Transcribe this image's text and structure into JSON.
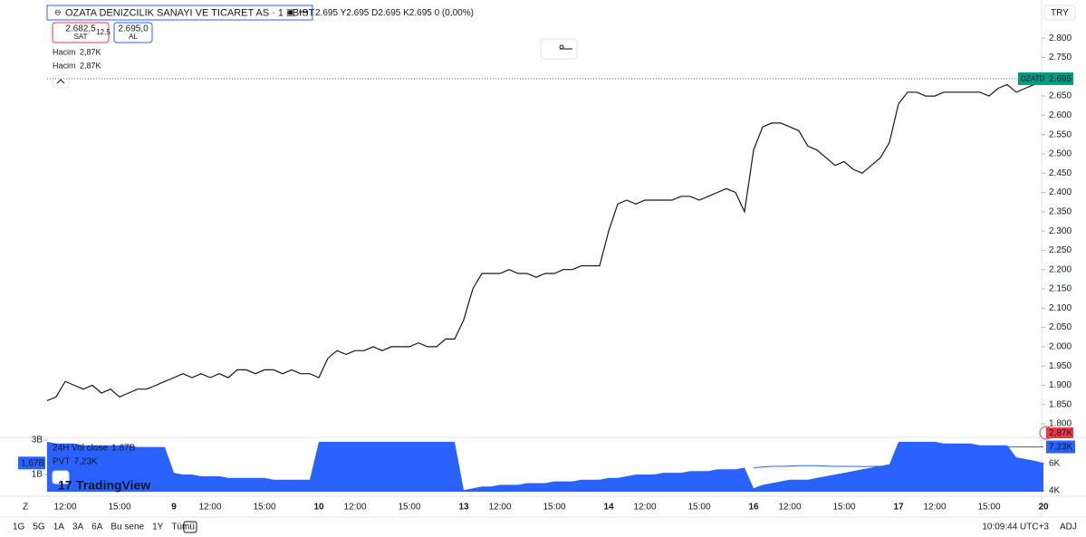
{
  "header": {
    "symbol": "OZATA DENIZCILIK SANAYI VE TICARET AS · 1 · BIST",
    "ohlc": "2.695 Y2.695 D2.695 K2.695 0 (0,00%)",
    "currency": "TRY"
  },
  "trade": {
    "sell_price": "2.682,5",
    "sell": "SAT",
    "spread": "12,5",
    "buy_price": "2.695,0",
    "buy": "AL"
  },
  "volume_legend": [
    {
      "name": "Hacim",
      "value": "2,87K"
    },
    {
      "name": "Hacim",
      "value": "2,87K"
    }
  ],
  "volume_tag": "2,87K",
  "brand": "TradingView",
  "scale_button": "Z",
  "toolbar": {
    "timeframes": [
      "1G",
      "5G",
      "1A",
      "3A",
      "6A",
      "Bu sene",
      "1Y",
      "Tümü"
    ],
    "clock": "10:09:44 UTC+3",
    "adj": "ADJ"
  },
  "chart_data": [
    {
      "type": "line",
      "categories": [
        null,
        null,
        "12:00",
        null,
        null,
        null,
        null,
        null,
        "15:00",
        null,
        null,
        null,
        null,
        null,
        "9",
        null,
        null,
        null,
        "12:00",
        null,
        null,
        null,
        null,
        null,
        "15:00",
        null,
        null,
        null,
        null,
        null,
        "10",
        null,
        null,
        null,
        "12:00",
        null,
        null,
        null,
        null,
        null,
        "15:00",
        null,
        null,
        null,
        null,
        null,
        "13",
        null,
        null,
        null,
        "12:00",
        null,
        null,
        null,
        null,
        null,
        "15:00",
        null,
        null,
        null,
        null,
        null,
        "14",
        null,
        null,
        null,
        "12:00",
        null,
        null,
        null,
        null,
        null,
        "15:00",
        null,
        null,
        null,
        null,
        null,
        "16",
        null,
        null,
        null,
        "12:00",
        null,
        null,
        null,
        null,
        null,
        "15:00",
        null,
        null,
        null,
        null,
        null,
        "17",
        null,
        null,
        null,
        "12:00",
        null,
        null,
        null,
        null,
        null,
        "15:00",
        null,
        null,
        null,
        null,
        null,
        "20"
      ],
      "series": [
        {
          "name": "OZATD",
          "color": "#131722",
          "values": [
            1.86,
            1.87,
            1.91,
            1.9,
            1.89,
            1.9,
            1.88,
            1.89,
            1.87,
            1.88,
            1.89,
            1.89,
            1.9,
            1.91,
            1.92,
            1.93,
            1.92,
            1.93,
            1.92,
            1.93,
            1.92,
            1.94,
            1.94,
            1.93,
            1.94,
            1.94,
            1.93,
            1.94,
            1.93,
            1.93,
            1.92,
            1.97,
            1.99,
            1.98,
            1.99,
            1.99,
            2.0,
            1.99,
            2.0,
            2.0,
            2.0,
            2.01,
            2.0,
            2.0,
            2.02,
            2.02,
            2.07,
            2.15,
            2.19,
            2.19,
            2.19,
            2.2,
            2.19,
            2.19,
            2.18,
            2.19,
            2.19,
            2.2,
            2.2,
            2.21,
            2.21,
            2.21,
            2.3,
            2.37,
            2.38,
            2.37,
            2.38,
            2.38,
            2.38,
            2.38,
            2.39,
            2.39,
            2.38,
            2.39,
            2.4,
            2.41,
            2.4,
            2.35,
            2.51,
            2.57,
            2.58,
            2.58,
            2.57,
            2.56,
            2.52,
            2.51,
            2.49,
            2.47,
            2.48,
            2.46,
            2.45,
            2.47,
            2.49,
            2.53,
            2.63,
            2.66,
            2.66,
            2.65,
            2.65,
            2.66,
            2.66,
            2.66,
            2.66,
            2.66,
            2.65,
            2.67,
            2.68,
            2.66,
            2.67,
            2.68,
            2.695
          ]
        }
      ],
      "last_line_color": "#089981",
      "ylim": [
        1.772,
        2.899
      ],
      "yticks": [
        {
          "value": 1.8,
          "label": "1.800"
        },
        {
          "value": 1.85,
          "label": "1.850"
        },
        {
          "value": 1.9,
          "label": "1.900"
        },
        {
          "value": 1.95,
          "label": "1.950"
        },
        {
          "value": 2.0,
          "label": "2.000"
        },
        {
          "value": 2.05,
          "label": "2.050"
        },
        {
          "value": 2.1,
          "label": "2.100"
        },
        {
          "value": 2.15,
          "label": "2.150"
        },
        {
          "value": 2.2,
          "label": "2.200"
        },
        {
          "value": 2.25,
          "label": "2.250"
        },
        {
          "value": 2.3,
          "label": "2.300"
        },
        {
          "value": 2.35,
          "label": "2.350"
        },
        {
          "value": 2.4,
          "label": "2.400"
        },
        {
          "value": 2.45,
          "label": "2.450"
        },
        {
          "value": 2.5,
          "label": "2.500"
        },
        {
          "value": 2.55,
          "label": "2.550"
        },
        {
          "value": 2.6,
          "label": "2.600"
        },
        {
          "value": 2.65,
          "label": "2.650"
        },
        {
          "value": 2.7,
          "label": "2.700"
        },
        {
          "value": 2.75,
          "label": "2.750"
        },
        {
          "value": 2.8,
          "label": "2.800"
        }
      ],
      "grid": false
    },
    {
      "type": "area",
      "series": [
        {
          "name": "24H Vol close",
          "color": "#2962ff",
          "value_label": "1,67B",
          "values": [
            2.9,
            2.8,
            2.8,
            2.8,
            2.7,
            2.7,
            2.7,
            2.7,
            2.7,
            2.7,
            2.6,
            2.6,
            2.6,
            2.6,
            1.1,
            1.0,
            1.0,
            0.9,
            0.9,
            0.9,
            0.8,
            0.8,
            0.8,
            0.8,
            0.8,
            0.7,
            0.7,
            0.7,
            0.7,
            0.7,
            2.9,
            2.9,
            2.9,
            2.9,
            2.9,
            2.9,
            2.9,
            2.9,
            2.9,
            2.9,
            2.9,
            2.9,
            2.9,
            2.9,
            2.9,
            2.9,
            0.1,
            0.2,
            0.3,
            0.3,
            0.4,
            0.4,
            0.4,
            0.5,
            0.5,
            0.5,
            0.6,
            0.6,
            0.6,
            0.7,
            0.7,
            0.7,
            0.8,
            0.8,
            0.9,
            1.0,
            1.0,
            1.0,
            1.1,
            1.1,
            1.1,
            1.2,
            1.2,
            1.2,
            1.3,
            1.3,
            1.3,
            1.4,
            0.2,
            0.4,
            0.5,
            0.6,
            0.7,
            0.7,
            0.7,
            0.8,
            0.9,
            1.0,
            1.1,
            1.2,
            1.3,
            1.4,
            1.5,
            1.6,
            2.9,
            2.9,
            2.9,
            2.9,
            2.9,
            2.8,
            2.8,
            2.8,
            2.8,
            2.7,
            2.7,
            2.7,
            2.7,
            2.0,
            1.9,
            1.8,
            1.67
          ]
        },
        {
          "name": "PVT",
          "color": "#2962ff",
          "axis": "y2",
          "value_label": "7,23K",
          "values": [
            null,
            null,
            null,
            null,
            null,
            null,
            null,
            null,
            null,
            null,
            null,
            null,
            null,
            null,
            null,
            null,
            null,
            null,
            null,
            null,
            null,
            null,
            null,
            null,
            null,
            null,
            null,
            null,
            null,
            null,
            null,
            null,
            null,
            null,
            null,
            null,
            null,
            null,
            null,
            null,
            null,
            null,
            null,
            null,
            null,
            null,
            null,
            null,
            null,
            null,
            null,
            null,
            null,
            null,
            null,
            null,
            null,
            null,
            null,
            null,
            null,
            null,
            null,
            null,
            null,
            null,
            null,
            null,
            null,
            null,
            null,
            null,
            null,
            null,
            null,
            null,
            null,
            null,
            5.7,
            5.75,
            5.8,
            5.8,
            5.82,
            5.85,
            5.85,
            5.85,
            5.82,
            5.8,
            5.8,
            5.8,
            5.78,
            5.8,
            5.8,
            5.8,
            7.2,
            7.25,
            7.27,
            7.27,
            7.27,
            7.27,
            7.27,
            7.25,
            7.25,
            7.25,
            7.25,
            7.25,
            7.24,
            7.24,
            7.23,
            7.23,
            7.23
          ]
        }
      ],
      "ylim": [
        -0.26,
        3.0
      ],
      "yticks": [
        {
          "value": 1,
          "label": "1B"
        },
        {
          "value": 3,
          "label": "3B"
        }
      ],
      "y2lim": [
        3.6,
        7.73
      ],
      "y2ticks": [
        {
          "value": 4,
          "label": "4K"
        },
        {
          "value": 6,
          "label": "6K"
        }
      ]
    }
  ]
}
